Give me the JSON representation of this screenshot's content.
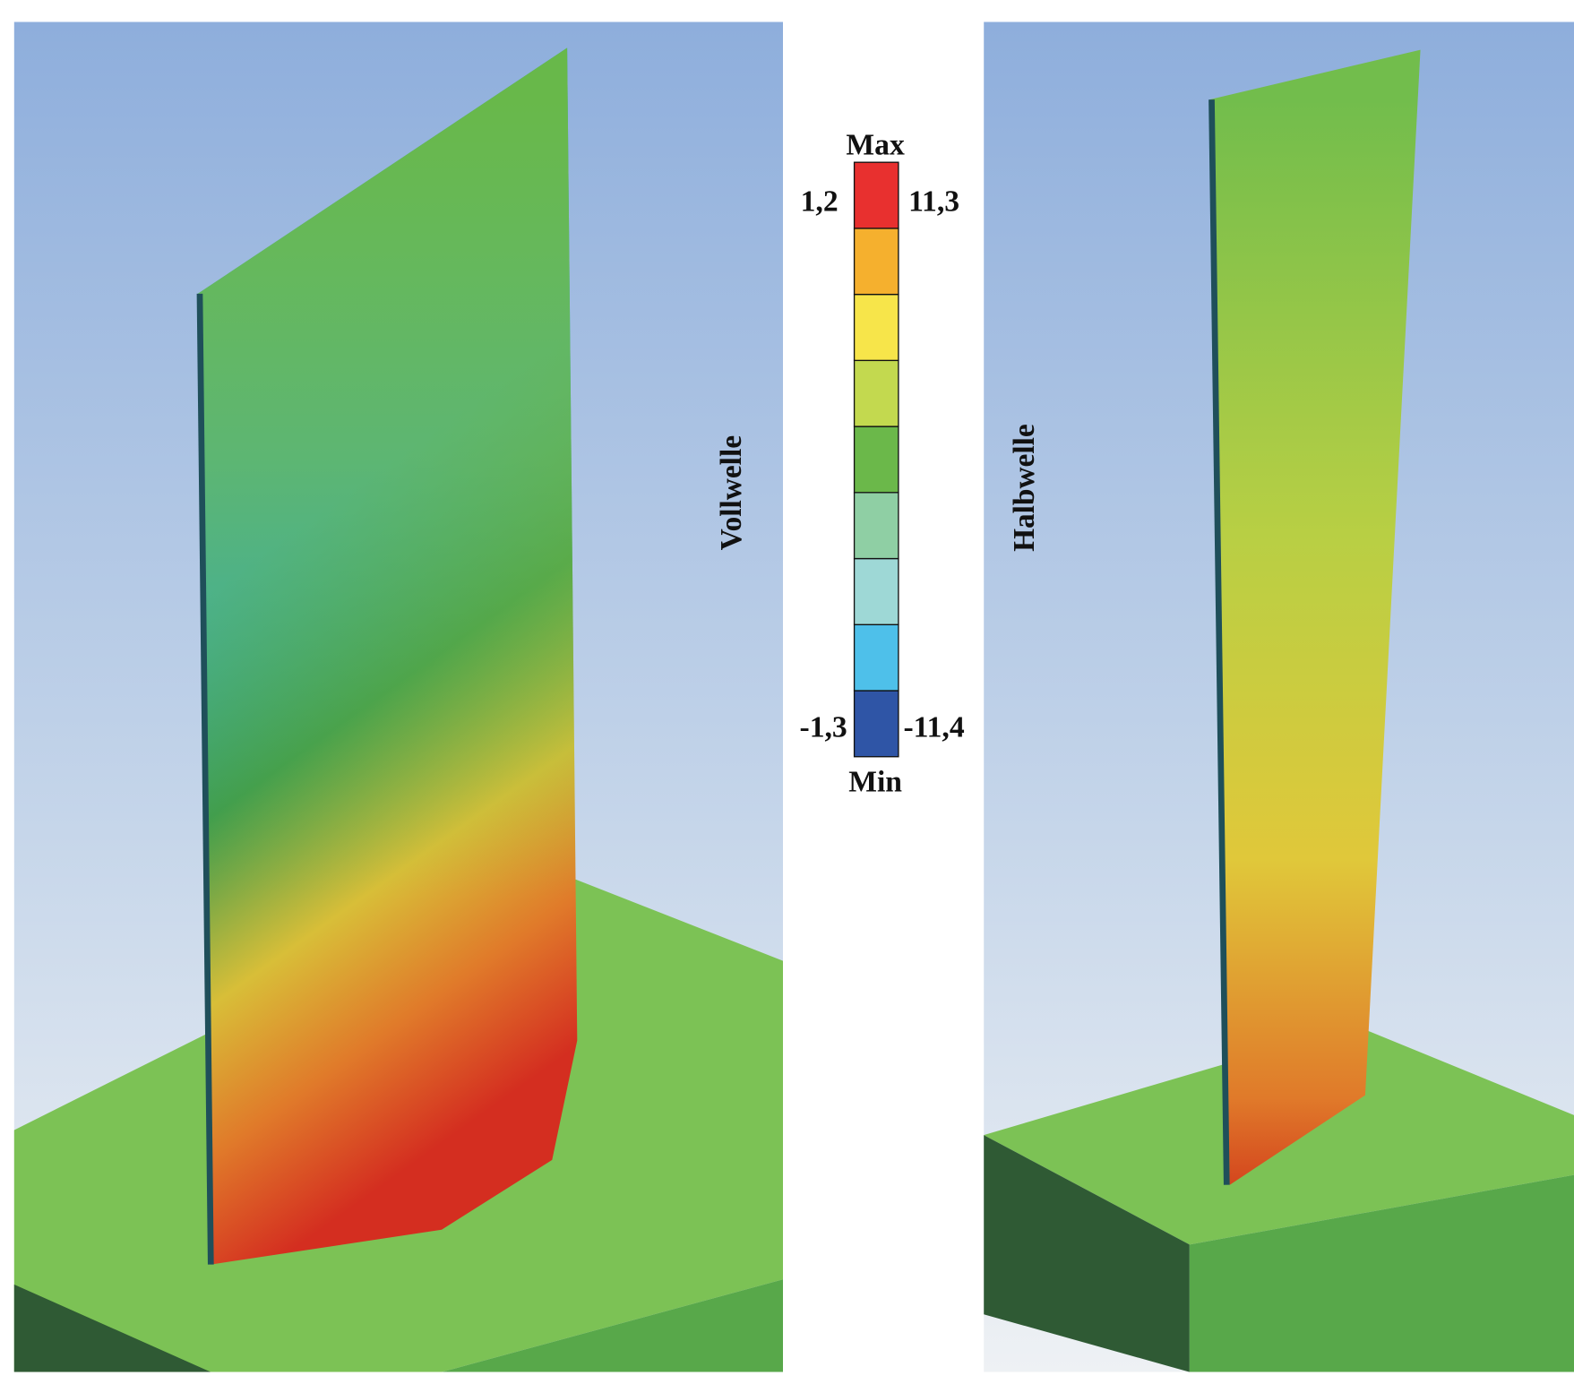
{
  "legend": {
    "max_label": "Max",
    "min_label": "Min",
    "left_top": "1,2",
    "right_top": "11,3",
    "left_bottom": "-1,3",
    "right_bottom": "-11,4",
    "colors": [
      "#e8302f",
      "#f5b02e",
      "#f7e54a",
      "#c3d94f",
      "#6bb84a",
      "#8fcfa4",
      "#9ed8d6",
      "#4ec0ea",
      "#2f55a6"
    ]
  },
  "panels": [
    {
      "label": "Vollwelle"
    },
    {
      "label": "Halbwelle"
    }
  ]
}
